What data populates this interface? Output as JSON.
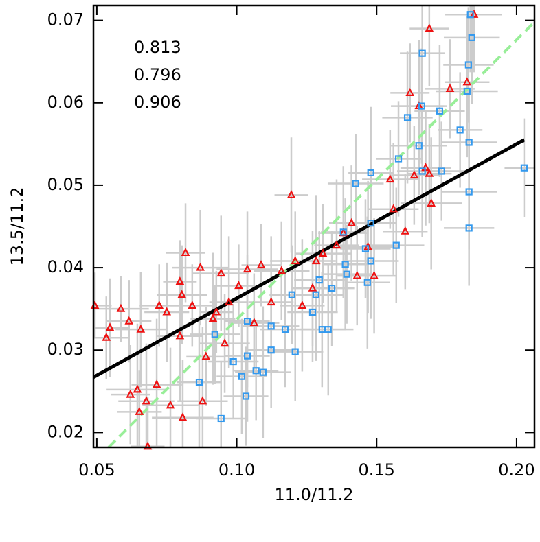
{
  "chart_data": {
    "type": "scatter",
    "x_label": "11.0/11.2",
    "y_label": "13.5/11.2",
    "xlim": [
      0.0488,
      0.2064
    ],
    "ylim": [
      0.0182,
      0.0718
    ],
    "xticks": [
      0.05,
      {
        "value": 0.1,
        "label": "0.10"
      },
      0.15,
      {
        "value": 0.2,
        "label": "0.20"
      }
    ],
    "yticks": [
      0.02,
      0.03,
      0.04,
      0.05,
      0.06,
      0.07
    ],
    "error_bar_color": "#cccccc",
    "annotations": [
      {
        "text": "0.813",
        "color": "#000000"
      },
      {
        "text": "0.796",
        "color": "#ee1111"
      },
      {
        "text": "0.906",
        "color": "#3399ee"
      }
    ],
    "series": [
      {
        "color": "#ee1111",
        "marker": "triangle",
        "x": [
          0.0493,
          0.0534,
          0.0547,
          0.0586,
          0.0615,
          0.0657,
          0.062,
          0.0645,
          0.0652,
          0.0677,
          0.0682,
          0.0714,
          0.0723,
          0.075,
          0.0763,
          0.0797,
          0.0804,
          0.0797,
          0.0807,
          0.0817,
          0.0841,
          0.087,
          0.0878,
          0.089,
          0.0915,
          0.0927,
          0.0944,
          0.0957,
          0.0972,
          0.1007,
          0.1038,
          0.1062,
          0.1087,
          0.1123,
          0.116,
          0.1195,
          0.1209,
          0.1234,
          0.1271,
          0.1308,
          0.1357,
          0.1381,
          0.143,
          0.1469,
          0.1491,
          0.1548,
          0.156,
          0.1602,
          0.1619,
          0.1651,
          0.1675,
          0.1688,
          0.1695,
          0.1688,
          0.1762,
          0.1823,
          0.1848,
          0.1634,
          0.141,
          0.1284
        ],
        "y": [
          0.0354,
          0.0315,
          0.0327,
          0.035,
          0.0335,
          0.0325,
          0.0246,
          0.0252,
          0.0225,
          0.0238,
          0.0183,
          0.0258,
          0.0354,
          0.0346,
          0.0233,
          0.0383,
          0.0367,
          0.0317,
          0.0218,
          0.0418,
          0.0354,
          0.04,
          0.0238,
          0.0292,
          0.0338,
          0.0346,
          0.0393,
          0.0308,
          0.0358,
          0.0378,
          0.0398,
          0.0333,
          0.0403,
          0.0358,
          0.0396,
          0.0488,
          0.0408,
          0.0354,
          0.0375,
          0.0417,
          0.0427,
          0.0442,
          0.039,
          0.0425,
          0.039,
          0.0507,
          0.0471,
          0.0444,
          0.0612,
          0.0596,
          0.0521,
          0.0514,
          0.0478,
          0.069,
          0.0617,
          0.0625,
          0.0707,
          0.0512,
          0.0454,
          0.0408
        ],
        "xerr": [
          0.006,
          0.008,
          0.007,
          0.01,
          0.008,
          0.009,
          0.007,
          0.011,
          0.008,
          0.01,
          0.006,
          0.009,
          0.007,
          0.008,
          0.01,
          0.006,
          0.009,
          0.008,
          0.011,
          0.007,
          0.008,
          0.01,
          0.009,
          0.007,
          0.008,
          0.006,
          0.01,
          0.009,
          0.007,
          0.008,
          0.011,
          0.009,
          0.007,
          0.008,
          0.01,
          0.006,
          0.009,
          0.008,
          0.007,
          0.01,
          0.008,
          0.009,
          0.007,
          0.011,
          0.008,
          0.01,
          0.009,
          0.008,
          0.007,
          0.01,
          0.009,
          0.008,
          0.011,
          0.007,
          0.009,
          0.008,
          0.01,
          0.009,
          0.008,
          0.007
        ],
        "yerr": [
          0.004,
          0.005,
          0.006,
          0.004,
          0.005,
          0.007,
          0.006,
          0.008,
          0.005,
          0.007,
          0.006,
          0.008,
          0.005,
          0.006,
          0.007,
          0.005,
          0.006,
          0.008,
          0.007,
          0.006,
          0.005,
          0.007,
          0.009,
          0.006,
          0.008,
          0.005,
          0.007,
          0.006,
          0.008,
          0.005,
          0.007,
          0.006,
          0.005,
          0.008,
          0.006,
          0.007,
          0.006,
          0.008,
          0.007,
          0.006,
          0.008,
          0.007,
          0.006,
          0.008,
          0.007,
          0.006,
          0.008,
          0.007,
          0.006,
          0.008,
          0.007,
          0.006,
          0.008,
          0.007,
          0.006,
          0.008,
          0.007,
          0.006,
          0.007,
          0.008
        ]
      },
      {
        "color": "#3399ee",
        "marker": "square",
        "x": [
          0.1835,
          0.184,
          0.1663,
          0.1828,
          0.1823,
          0.1661,
          0.1725,
          0.183,
          0.1798,
          0.161,
          0.1651,
          0.1578,
          0.1663,
          0.1732,
          0.183,
          0.2027,
          0.183,
          0.1479,
          0.1425,
          0.1479,
          0.1381,
          0.146,
          0.157,
          0.1388,
          0.1393,
          0.1479,
          0.1467,
          0.1295,
          0.134,
          0.1283,
          0.1271,
          0.1305,
          0.1327,
          0.1197,
          0.1173,
          0.1123,
          0.1038,
          0.1123,
          0.1209,
          0.1038,
          0.0988,
          0.1069,
          0.1094,
          0.1018,
          0.1033,
          0.0944,
          0.0866,
          0.0922
        ],
        "y": [
          0.0707,
          0.0679,
          0.066,
          0.0646,
          0.0614,
          0.0596,
          0.059,
          0.0552,
          0.0567,
          0.0582,
          0.0548,
          0.0532,
          0.0517,
          0.0517,
          0.0492,
          0.0521,
          0.0448,
          0.0515,
          0.0502,
          0.0454,
          0.0443,
          0.0423,
          0.0427,
          0.0404,
          0.0392,
          0.0408,
          0.0382,
          0.0385,
          0.0375,
          0.0367,
          0.0346,
          0.0325,
          0.0325,
          0.0367,
          0.0325,
          0.0329,
          0.0335,
          0.03,
          0.0298,
          0.0293,
          0.0286,
          0.0275,
          0.0273,
          0.0268,
          0.0244,
          0.0217,
          0.0261,
          0.0319
        ],
        "xerr": [
          0.009,
          0.01,
          0.008,
          0.009,
          0.011,
          0.008,
          0.009,
          0.01,
          0.008,
          0.009,
          0.01,
          0.008,
          0.009,
          0.008,
          0.01,
          0.007,
          0.009,
          0.008,
          0.01,
          0.009,
          0.008,
          0.009,
          0.01,
          0.008,
          0.009,
          0.01,
          0.008,
          0.009,
          0.008,
          0.01,
          0.009,
          0.008,
          0.009,
          0.008,
          0.009,
          0.01,
          0.008,
          0.009,
          0.01,
          0.008,
          0.009,
          0.008,
          0.01,
          0.009,
          0.008,
          0.009,
          0.008,
          0.009
        ],
        "yerr": [
          0.007,
          0.008,
          0.008,
          0.007,
          0.008,
          0.007,
          0.008,
          0.006,
          0.007,
          0.008,
          0.006,
          0.007,
          0.008,
          0.006,
          0.007,
          0.006,
          0.007,
          0.008,
          0.006,
          0.007,
          0.008,
          0.006,
          0.007,
          0.008,
          0.006,
          0.007,
          0.008,
          0.006,
          0.007,
          0.008,
          0.006,
          0.007,
          0.008,
          0.006,
          0.007,
          0.006,
          0.008,
          0.007,
          0.006,
          0.008,
          0.007,
          0.006,
          0.008,
          0.007,
          0.006,
          0.007,
          0.008,
          0.006
        ]
      }
    ],
    "lines": [
      {
        "color": "#000000",
        "dash": false,
        "x": [
          0.0488,
          0.2027
        ],
        "y": [
          0.0267,
          0.0555
        ]
      },
      {
        "color": "#99ee99",
        "dash": true,
        "x": [
          0.0542,
          0.2064
        ],
        "y": [
          0.0182,
          0.0698
        ]
      }
    ]
  }
}
